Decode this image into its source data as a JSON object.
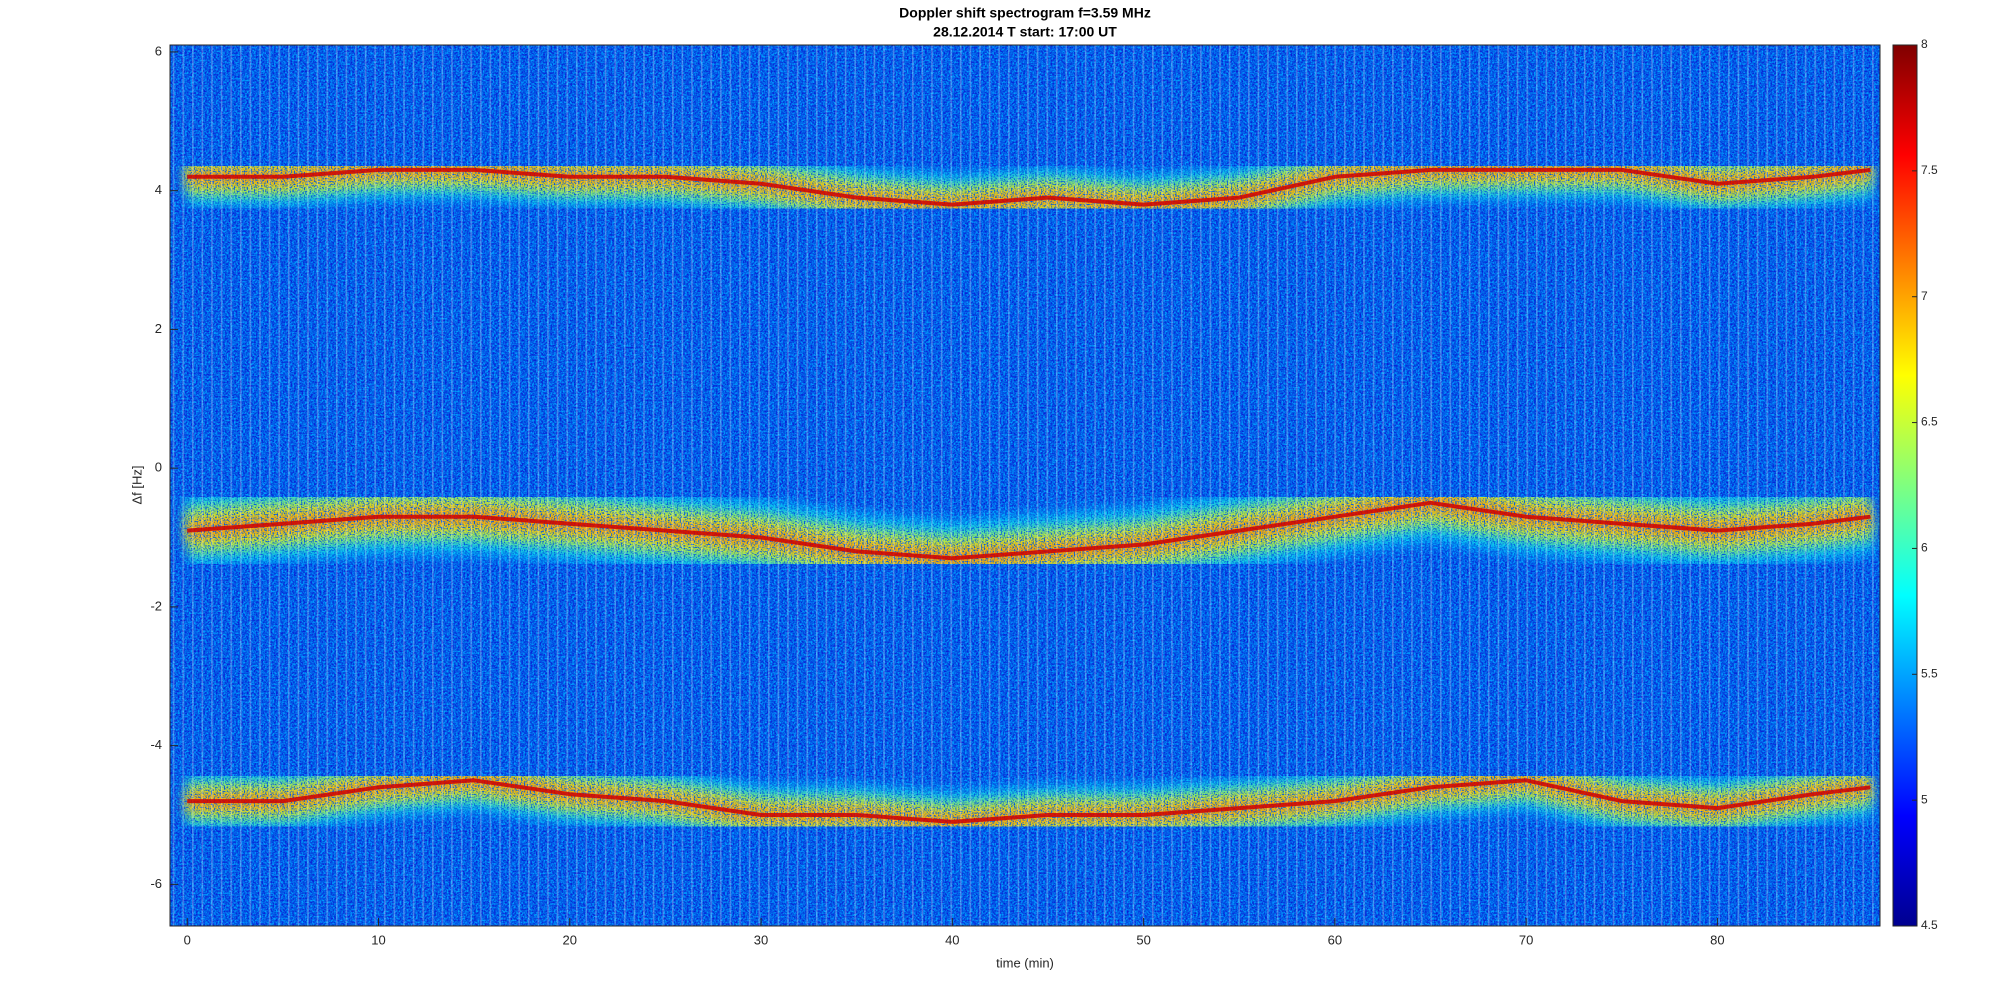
{
  "chart_data": {
    "type": "spectrogram",
    "title": "Doppler shift spectrogram f=3.59 MHz",
    "subtitle": "28.12.2014   T start: 17:00 UT",
    "x_label": "time (min)",
    "y_label": "Δf [Hz]",
    "x": [
      0,
      5,
      10,
      15,
      20,
      25,
      30,
      35,
      40,
      45,
      50,
      55,
      60,
      65,
      70,
      75,
      80,
      85,
      88
    ],
    "series": [
      {
        "color": "#d00000",
        "values": [
          4.2,
          4.2,
          4.3,
          4.3,
          4.2,
          4.2,
          4.1,
          3.9,
          3.8,
          3.9,
          3.8,
          3.9,
          4.2,
          4.3,
          4.3,
          4.3,
          4.1,
          4.2,
          4.3
        ]
      },
      {
        "color": "#d00000",
        "values": [
          -0.9,
          -0.8,
          -0.7,
          -0.7,
          -0.8,
          -0.9,
          -1.0,
          -1.2,
          -1.3,
          -1.2,
          -1.1,
          -0.9,
          -0.7,
          -0.5,
          -0.7,
          -0.8,
          -0.9,
          -0.8,
          -0.7
        ]
      },
      {
        "color": "#d00000",
        "values": [
          -4.8,
          -4.8,
          -4.6,
          -4.5,
          -4.7,
          -4.8,
          -5.0,
          -5.0,
          -5.1,
          -5.0,
          -5.0,
          -4.9,
          -4.8,
          -4.6,
          -4.5,
          -4.8,
          -4.9,
          -4.7,
          -4.6
        ]
      }
    ],
    "xlim": [
      -0.9,
      88.5
    ],
    "xticks": [
      0,
      10,
      20,
      30,
      40,
      50,
      60,
      70,
      80
    ],
    "ylim": [
      -6.6,
      6.1
    ],
    "yticks": [
      -6,
      -4,
      -2,
      0,
      2,
      4,
      6
    ],
    "clim": [
      4.5,
      8
    ],
    "cticks": [
      4.5,
      5,
      5.5,
      6,
      6.5,
      7,
      7.5,
      8
    ],
    "colormap": "jet"
  }
}
